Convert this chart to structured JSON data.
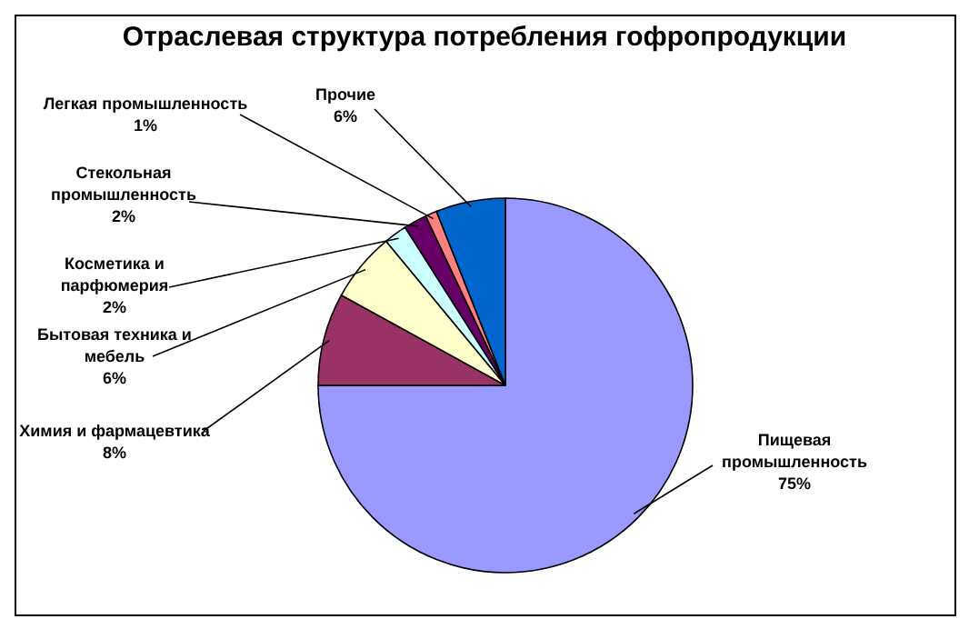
{
  "chart_data": {
    "type": "pie",
    "title": "Отраслевая структура потребления гофропродукции",
    "categories": [
      "Пищевая промышленность",
      "Химия и фармацевтика",
      "Бытовая техника и мебель",
      "Косметика и парфюмерия",
      "Стекольная промышленность",
      "Легкая промышленность",
      "Прочие"
    ],
    "values": [
      75,
      8,
      6,
      2,
      2,
      1,
      6
    ],
    "value_labels": [
      "75%",
      "8%",
      "6%",
      "2%",
      "2%",
      "1%",
      "6%"
    ],
    "colors": [
      "#9999ff",
      "#993366",
      "#ffffcc",
      "#ccffff",
      "#660066",
      "#ff8080",
      "#0066cc"
    ],
    "legend": false
  }
}
